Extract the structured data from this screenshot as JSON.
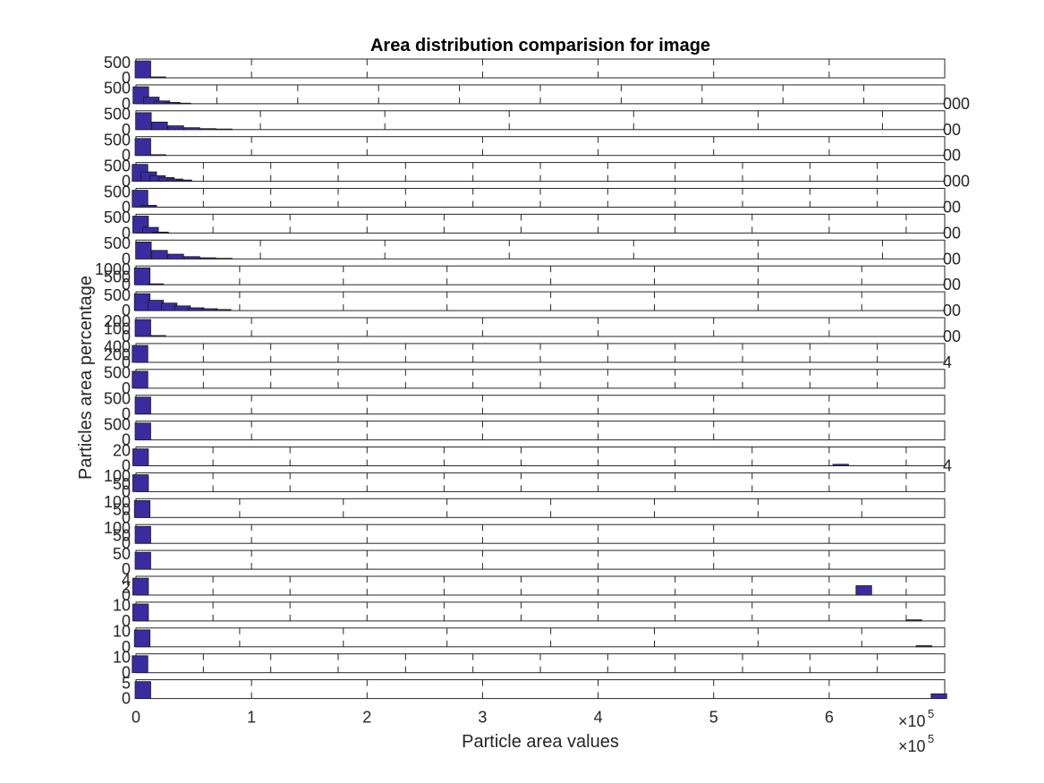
{
  "chart_data": {
    "type": "bar",
    "title": "Area distribution comparision for image",
    "xlabel": "Particle area values",
    "ylabel": "Particles area percentage",
    "xlim": [
      0,
      7
    ],
    "x_ticks": [
      "0",
      "1",
      "2",
      "3",
      "4",
      "5",
      "6"
    ],
    "x_exponent_label": "×10",
    "x_exponent_power": "5",
    "colors": {
      "bar_fill": "#3a2ca0",
      "bar_edge": "#1a1a1a",
      "axis": "#262626",
      "text": "#262626"
    },
    "subplots": [
      {
        "yticks": [
          "0",
          "500"
        ],
        "right_label": "",
        "xmax": 7.0,
        "bins": [
          {
            "x": 0.06,
            "h": 0.9
          },
          {
            "x": 0.19,
            "h": 0.05
          }
        ]
      },
      {
        "yticks": [
          "0",
          "500"
        ],
        "right_label": "000",
        "xmax": 10.0,
        "bins": [
          {
            "x": 0.06,
            "h": 0.9
          },
          {
            "x": 0.19,
            "h": 0.35
          },
          {
            "x": 0.32,
            "h": 0.15
          },
          {
            "x": 0.45,
            "h": 0.07
          },
          {
            "x": 0.58,
            "h": 0.03
          }
        ]
      },
      {
        "yticks": [
          "0",
          "500"
        ],
        "right_label": "00",
        "xmax": 6.5,
        "bins": [
          {
            "x": 0.06,
            "h": 0.9
          },
          {
            "x": 0.19,
            "h": 0.4
          },
          {
            "x": 0.32,
            "h": 0.2
          },
          {
            "x": 0.45,
            "h": 0.1
          },
          {
            "x": 0.58,
            "h": 0.05
          },
          {
            "x": 0.71,
            "h": 0.03
          }
        ]
      },
      {
        "yticks": [
          "0",
          "500"
        ],
        "right_label": "00",
        "xmax": 7.0,
        "bins": [
          {
            "x": 0.06,
            "h": 0.9
          },
          {
            "x": 0.19,
            "h": 0.04
          }
        ]
      },
      {
        "yticks": [
          "0",
          "500"
        ],
        "right_label": "000",
        "xmax": 12.0,
        "bins": [
          {
            "x": 0.06,
            "h": 0.9
          },
          {
            "x": 0.19,
            "h": 0.5
          },
          {
            "x": 0.32,
            "h": 0.3
          },
          {
            "x": 0.45,
            "h": 0.2
          },
          {
            "x": 0.58,
            "h": 0.12
          },
          {
            "x": 0.71,
            "h": 0.07
          }
        ]
      },
      {
        "yticks": [
          "0",
          "500"
        ],
        "right_label": "00",
        "xmax": 12.0,
        "bins": [
          {
            "x": 0.06,
            "h": 0.9
          },
          {
            "x": 0.19,
            "h": 0.1
          }
        ]
      },
      {
        "yticks": [
          "0",
          "500"
        ],
        "right_label": "00",
        "xmax": 10.5,
        "bins": [
          {
            "x": 0.06,
            "h": 0.9
          },
          {
            "x": 0.19,
            "h": 0.3
          },
          {
            "x": 0.32,
            "h": 0.05
          }
        ]
      },
      {
        "yticks": [
          "0",
          "500"
        ],
        "right_label": "00",
        "xmax": 6.5,
        "bins": [
          {
            "x": 0.06,
            "h": 0.9
          },
          {
            "x": 0.19,
            "h": 0.45
          },
          {
            "x": 0.32,
            "h": 0.25
          },
          {
            "x": 0.45,
            "h": 0.12
          },
          {
            "x": 0.58,
            "h": 0.06
          },
          {
            "x": 0.71,
            "h": 0.03
          }
        ]
      },
      {
        "yticks": [
          "0",
          "500",
          "1000"
        ],
        "right_label": "00",
        "xmax": 7.8,
        "bins": [
          {
            "x": 0.06,
            "h": 0.9
          },
          {
            "x": 0.19,
            "h": 0.05
          }
        ]
      },
      {
        "yticks": [
          "0",
          "500"
        ],
        "right_label": "00",
        "xmax": 7.8,
        "bins": [
          {
            "x": 0.06,
            "h": 0.9
          },
          {
            "x": 0.19,
            "h": 0.55
          },
          {
            "x": 0.32,
            "h": 0.4
          },
          {
            "x": 0.45,
            "h": 0.25
          },
          {
            "x": 0.58,
            "h": 0.15
          },
          {
            "x": 0.71,
            "h": 0.1
          },
          {
            "x": 0.84,
            "h": 0.06
          }
        ]
      },
      {
        "yticks": [
          "0",
          "100",
          "200"
        ],
        "right_label": "00",
        "xmax": 7.0,
        "bins": [
          {
            "x": 0.06,
            "h": 0.9
          },
          {
            "x": 0.19,
            "h": 0.05
          }
        ]
      },
      {
        "yticks": [
          "0",
          "200",
          "400"
        ],
        "right_label": "4",
        "xmax": 12.0,
        "bins": [
          {
            "x": 0.06,
            "h": 0.9
          }
        ]
      },
      {
        "yticks": [
          "0",
          "500"
        ],
        "right_label": "",
        "xmax": 12.0,
        "bins": [
          {
            "x": 0.06,
            "h": 0.9
          }
        ]
      },
      {
        "yticks": [
          "0",
          "500"
        ],
        "right_label": "",
        "xmax": 7.0,
        "bins": [
          {
            "x": 0.06,
            "h": 0.9
          }
        ]
      },
      {
        "yticks": [
          "0",
          "500"
        ],
        "right_label": "",
        "xmax": 7.0,
        "bins": [
          {
            "x": 0.06,
            "h": 0.9
          }
        ]
      },
      {
        "yticks": [
          "0",
          "20"
        ],
        "right_label": "4",
        "xmax": 10.5,
        "bins": [
          {
            "x": 0.06,
            "h": 0.9
          },
          {
            "x": 9.15,
            "h": 0.08
          }
        ]
      },
      {
        "yticks": [
          "0",
          "50",
          "100"
        ],
        "right_label": "",
        "xmax": 10.5,
        "bins": [
          {
            "x": 0.06,
            "h": 0.9
          }
        ]
      },
      {
        "yticks": [
          "0",
          "50",
          "100"
        ],
        "right_label": "",
        "xmax": 7.8,
        "bins": [
          {
            "x": 0.06,
            "h": 0.9
          }
        ]
      },
      {
        "yticks": [
          "0",
          "50",
          "100"
        ],
        "right_label": "",
        "xmax": 7.0,
        "bins": [
          {
            "x": 0.06,
            "h": 0.9
          }
        ]
      },
      {
        "yticks": [
          "0",
          "50"
        ],
        "right_label": "",
        "xmax": 7.0,
        "bins": [
          {
            "x": 0.06,
            "h": 0.9
          }
        ]
      },
      {
        "yticks": [
          "0",
          "2",
          "4"
        ],
        "right_label": "",
        "xmax": 10.5,
        "bins": [
          {
            "x": 0.06,
            "h": 0.9
          },
          {
            "x": 9.45,
            "h": 0.5
          }
        ]
      },
      {
        "yticks": [
          "0",
          "10"
        ],
        "right_label": "",
        "xmax": 10.5,
        "bins": [
          {
            "x": 0.06,
            "h": 0.9
          },
          {
            "x": 10.1,
            "h": 0.06
          }
        ]
      },
      {
        "yticks": [
          "0",
          "10"
        ],
        "right_label": "",
        "xmax": 7.8,
        "bins": [
          {
            "x": 0.06,
            "h": 0.9
          },
          {
            "x": 7.6,
            "h": 0.06
          }
        ]
      },
      {
        "yticks": [
          "0",
          "10"
        ],
        "right_label": "",
        "xmax": 12.0,
        "bins": [
          {
            "x": 0.06,
            "h": 0.9
          }
        ]
      },
      {
        "yticks": [
          "0",
          "5"
        ],
        "right_label": "",
        "xmax": 7.0,
        "bins": [
          {
            "x": 0.06,
            "h": 0.9
          },
          {
            "x": 6.95,
            "h": 0.25
          }
        ]
      }
    ]
  }
}
